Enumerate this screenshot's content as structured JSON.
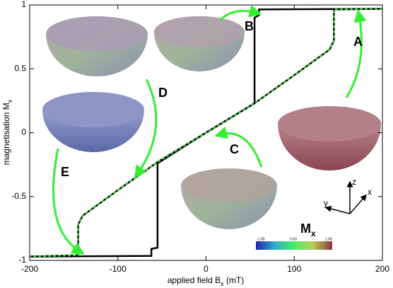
{
  "chart_data": {
    "type": "line",
    "xlabel": [
      "applied field B",
      "x",
      " (mT)"
    ],
    "ylabel": [
      "magnetisation M",
      "x"
    ],
    "xlim": [
      -200,
      200
    ],
    "xticks": [
      -200,
      -100,
      0,
      100,
      200
    ],
    "ylim": [
      -1,
      1
    ],
    "yticks": [
      -1,
      -0.5,
      0,
      0.5,
      1
    ],
    "series": [
      {
        "color": "#000000",
        "dash": false,
        "x": [
          200,
          145,
          145,
          140,
          100,
          55,
          0,
          -55,
          -100,
          -140,
          -145,
          -145,
          -200
        ],
        "values": [
          0.97,
          0.965,
          0.72,
          0.65,
          0.45,
          0.23,
          0,
          -0.23,
          -0.45,
          -0.65,
          -0.72,
          -0.96,
          -0.97
        ]
      },
      {
        "color": "#000000",
        "dash": false,
        "x": [
          -200,
          -62,
          -62,
          -55,
          -55,
          0,
          55,
          55,
          60,
          60,
          200
        ],
        "values": [
          -0.97,
          -0.965,
          -0.91,
          -0.9,
          -0.24,
          0,
          0.23,
          0.9,
          0.92,
          0.965,
          0.97
        ]
      },
      {
        "color": "#33dd33",
        "dash": true,
        "x": [
          200,
          145,
          145,
          140,
          100,
          55,
          0,
          -55,
          -100,
          -140,
          -145,
          -145,
          -200
        ],
        "values": [
          0.97,
          0.965,
          0.72,
          0.65,
          0.45,
          0.23,
          0,
          -0.23,
          -0.45,
          -0.65,
          -0.72,
          -0.96,
          -0.97
        ]
      }
    ],
    "annotations": [
      "A",
      "B",
      "C",
      "D",
      "E"
    ],
    "colorbar": {
      "title": [
        "M",
        "x"
      ],
      "ticks": [
        "-1.00",
        "0.00",
        "1.00"
      ]
    },
    "axes_labels": [
      "x",
      "y",
      "z"
    ]
  }
}
